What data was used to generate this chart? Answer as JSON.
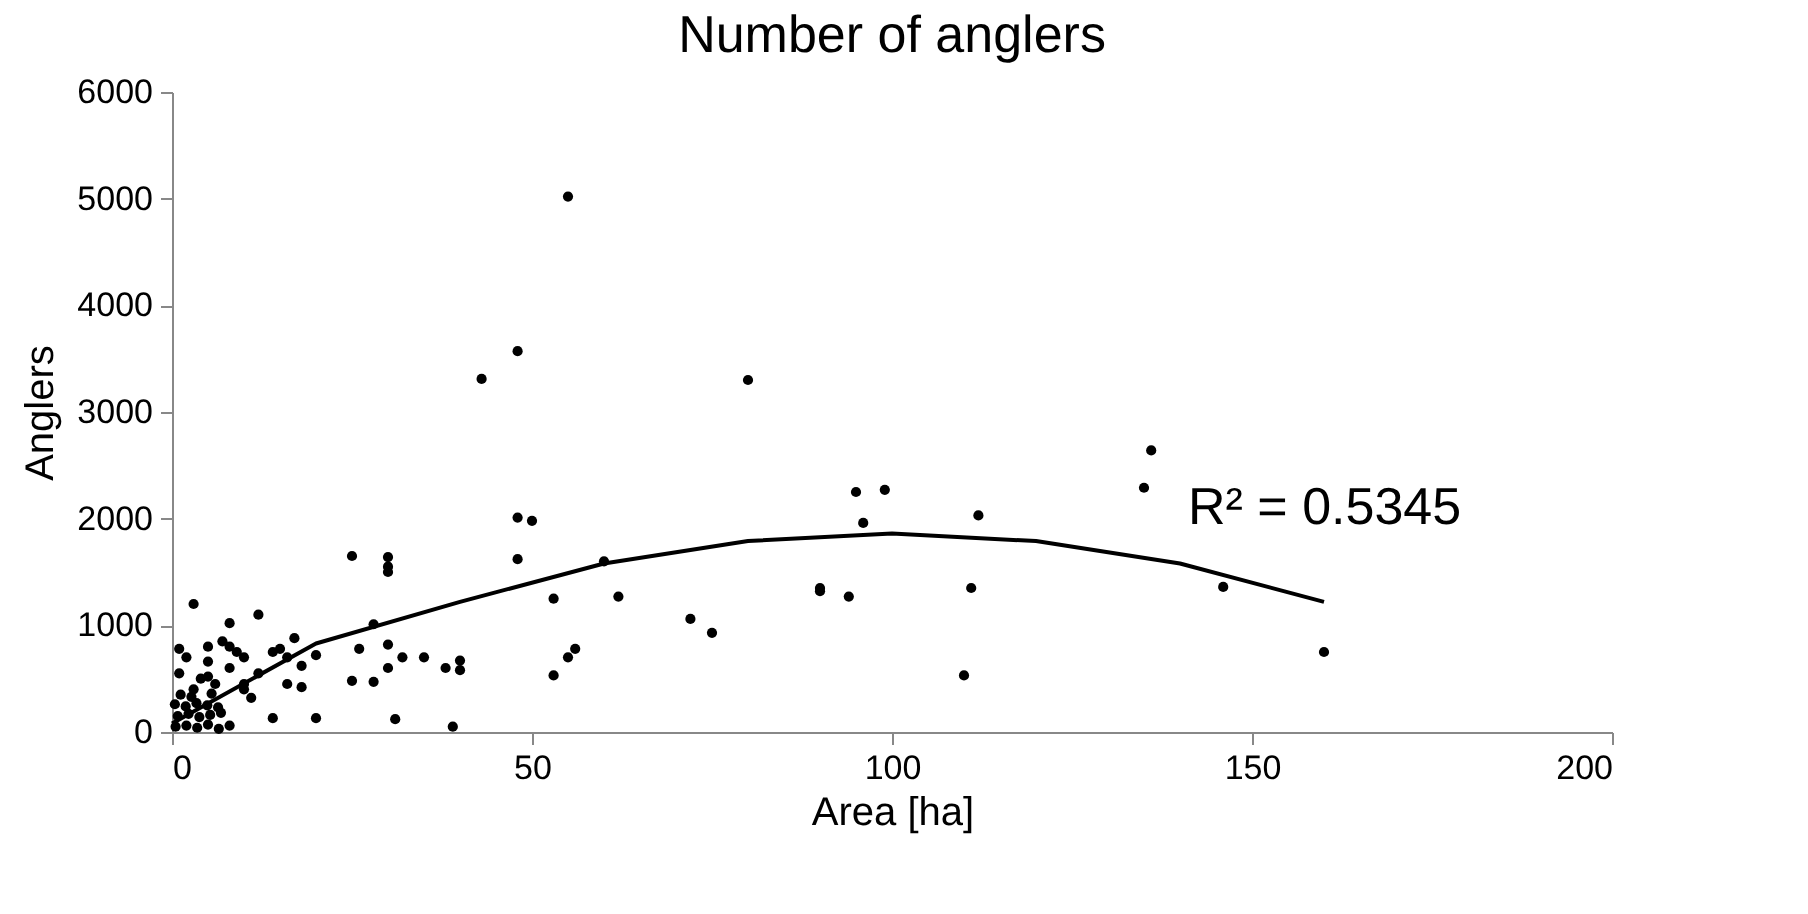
{
  "chart_data": {
    "type": "scatter",
    "title": "Number of anglers",
    "xlabel": "Area [ha]",
    "ylabel": "Anglers",
    "xlim": [
      0,
      200
    ],
    "xticks": [
      0,
      50,
      100,
      150,
      200
    ],
    "ylim": [
      0,
      6000
    ],
    "yticks": [
      0,
      1000,
      2000,
      3000,
      4000,
      5000,
      6000
    ],
    "grid": false,
    "annotations": [
      "R² = 0.5345"
    ],
    "series": [
      {
        "color": "#000000",
        "marker": "circle",
        "x": [
          55,
          48,
          43,
          80,
          136,
          135,
          95,
          99,
          96,
          112,
          48,
          50,
          48,
          146,
          111,
          90,
          90,
          94,
          62,
          53,
          60,
          72,
          75,
          110,
          160,
          53,
          56,
          55,
          30,
          30,
          30,
          25,
          28,
          30,
          26,
          32,
          30,
          40,
          40,
          38,
          35,
          39,
          31,
          28,
          25,
          20,
          18,
          17,
          15,
          16,
          14,
          16,
          18,
          14,
          20,
          12,
          12,
          10,
          8,
          8,
          7,
          9,
          8,
          10,
          10,
          11,
          8,
          5,
          5,
          3,
          1,
          2,
          1,
          4,
          5,
          6,
          3,
          0.5,
          2,
          3.5,
          5,
          6.5,
          0.8,
          2.3,
          3.8,
          5.3,
          6.8,
          0.4,
          1.9,
          3.4,
          4.9,
          6.4,
          1.2,
          2.7,
          5.5
        ],
        "values": [
          5020,
          3570,
          3310,
          3300,
          2640,
          2290,
          2250,
          2270,
          1960,
          2030,
          2010,
          1980,
          1620,
          1360,
          1350,
          1350,
          1320,
          1270,
          1270,
          1250,
          1600,
          1060,
          930,
          530,
          750,
          530,
          780,
          700,
          1640,
          1550,
          1500,
          1650,
          1010,
          820,
          780,
          700,
          600,
          670,
          580,
          600,
          700,
          50,
          120,
          470,
          480,
          720,
          620,
          880,
          780,
          700,
          750,
          450,
          420,
          130,
          130,
          1100,
          550,
          700,
          1020,
          800,
          850,
          750,
          600,
          450,
          400,
          320,
          60,
          800,
          660,
          1200,
          780,
          700,
          550,
          500,
          520,
          450,
          400,
          50,
          60,
          40,
          70,
          30,
          150,
          170,
          140,
          160,
          180,
          260,
          240,
          270,
          250,
          230,
          350,
          330,
          360
        ]
      },
      {
        "type": "line",
        "color": "#000000",
        "x": [
          0,
          20,
          40,
          60,
          80,
          100,
          120,
          140,
          160
        ],
        "values": [
          80,
          830,
          1220,
          1580,
          1790,
          1860,
          1790,
          1580,
          1220
        ]
      }
    ]
  }
}
